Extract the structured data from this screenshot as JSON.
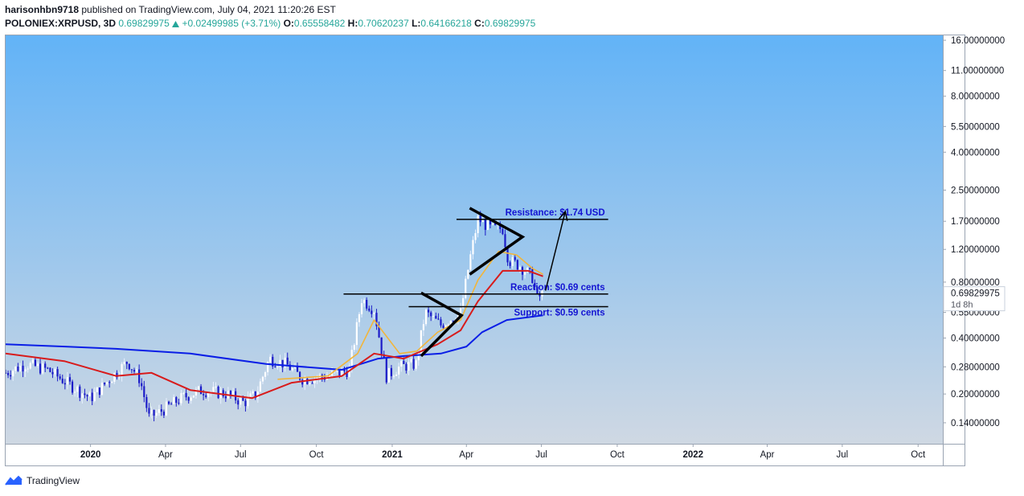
{
  "header": {
    "user": "harisonhbn9718",
    "published": "published on TradingView.com, July 04, 2021 11:20:26 EST",
    "symbol": "POLONIEX:XRPUSD, 3D",
    "last": "0.69829975",
    "change_icon": "triangle-up-icon",
    "change": "+0.02499985 (+3.71%)",
    "o_label": "O:",
    "o": "0.65558482",
    "h_label": "H:",
    "h": "0.70620237",
    "l_label": "L:",
    "l": "0.64166218",
    "c_label": "C:",
    "c": "0.69829975"
  },
  "footer": {
    "brand": "TradingView",
    "logo_icon": "tradingview-logo-icon"
  },
  "colors": {
    "bg_top": "#62b3f7",
    "bg_bottom": "#cfd8e3",
    "candle_up": "#ffffff",
    "candle_down": "#1c1cc8",
    "ma_long": "#0a1ee6",
    "ma_mid": "#d81b1b",
    "ma_short": "#f2b53a",
    "annotation_text": "#1414d2",
    "lines": "#000000",
    "axis_text": "#131722"
  },
  "chart_data": {
    "type": "candlestick",
    "title": "",
    "y_scale": "log",
    "ylim": [
      0.108,
      17.0
    ],
    "xlim": [
      "2019-09-20",
      "2022-10-31"
    ],
    "y_ticks": [
      "16.00000000",
      "11.00000000",
      "8.00000000",
      "5.50000000",
      "4.00000000",
      "2.50000000",
      "1.70000000",
      "1.20000000",
      "0.80000000",
      "0.55000000",
      "0.40000000",
      "0.28000000",
      "0.20000000",
      "0.14000000"
    ],
    "x_ticks": [
      {
        "label": "2020",
        "date": "2020-01-01",
        "bold": true
      },
      {
        "label": "Apr",
        "date": "2020-04-01",
        "bold": false
      },
      {
        "label": "Jul",
        "date": "2020-07-01",
        "bold": false
      },
      {
        "label": "Oct",
        "date": "2020-10-01",
        "bold": false
      },
      {
        "label": "2021",
        "date": "2021-01-01",
        "bold": true
      },
      {
        "label": "Apr",
        "date": "2021-04-01",
        "bold": false
      },
      {
        "label": "Jul",
        "date": "2021-07-01",
        "bold": false
      },
      {
        "label": "Oct",
        "date": "2021-10-01",
        "bold": false
      },
      {
        "label": "2022",
        "date": "2022-01-01",
        "bold": true
      },
      {
        "label": "Apr",
        "date": "2022-04-01",
        "bold": false
      },
      {
        "label": "Jul",
        "date": "2022-07-01",
        "bold": false
      },
      {
        "label": "Oct",
        "date": "2022-10-01",
        "bold": false
      }
    ],
    "last_price": {
      "label": "0.69829975",
      "countdown": "1d 8h",
      "value": 0.698
    },
    "candle_path": [
      [
        "2019-09-20",
        0.26
      ],
      [
        "2019-10-15",
        0.29
      ],
      [
        "2019-11-10",
        0.27
      ],
      [
        "2019-12-10",
        0.22
      ],
      [
        "2020-01-01",
        0.19
      ],
      [
        "2020-01-20",
        0.23
      ],
      [
        "2020-02-15",
        0.3
      ],
      [
        "2020-03-01",
        0.24
      ],
      [
        "2020-03-12",
        0.15
      ],
      [
        "2020-03-25",
        0.16
      ],
      [
        "2020-04-20",
        0.19
      ],
      [
        "2020-05-15",
        0.21
      ],
      [
        "2020-06-15",
        0.2
      ],
      [
        "2020-07-05",
        0.18
      ],
      [
        "2020-07-20",
        0.2
      ],
      [
        "2020-08-05",
        0.31
      ],
      [
        "2020-08-25",
        0.29
      ],
      [
        "2020-09-15",
        0.24
      ],
      [
        "2020-10-15",
        0.25
      ],
      [
        "2020-11-10",
        0.27
      ],
      [
        "2020-11-25",
        0.65
      ],
      [
        "2020-12-10",
        0.57
      ],
      [
        "2020-12-25",
        0.25
      ],
      [
        "2021-01-10",
        0.28
      ],
      [
        "2021-01-30",
        0.29
      ],
      [
        "2021-02-10",
        0.55
      ],
      [
        "2021-03-01",
        0.47
      ],
      [
        "2021-03-25",
        0.55
      ],
      [
        "2021-04-05",
        1.05
      ],
      [
        "2021-04-15",
        1.75
      ],
      [
        "2021-05-01",
        1.55
      ],
      [
        "2021-05-15",
        1.55
      ],
      [
        "2021-05-22",
        1.05
      ],
      [
        "2021-06-05",
        0.98
      ],
      [
        "2021-06-20",
        0.85
      ],
      [
        "2021-06-26",
        0.65
      ],
      [
        "2021-07-03",
        0.698
      ]
    ],
    "ma_series": [
      {
        "role": "ma-long",
        "points": [
          [
            "2019-09-20",
            0.37
          ],
          [
            "2019-12-01",
            0.36
          ],
          [
            "2020-02-01",
            0.35
          ],
          [
            "2020-05-01",
            0.33
          ],
          [
            "2020-08-01",
            0.29
          ],
          [
            "2020-11-01",
            0.27
          ],
          [
            "2020-12-15",
            0.31
          ],
          [
            "2021-01-15",
            0.32
          ],
          [
            "2021-03-01",
            0.33
          ],
          [
            "2021-04-01",
            0.36
          ],
          [
            "2021-04-20",
            0.43
          ],
          [
            "2021-05-20",
            0.5
          ],
          [
            "2021-07-03",
            0.53
          ]
        ]
      },
      {
        "role": "ma-mid",
        "points": [
          [
            "2019-09-20",
            0.33
          ],
          [
            "2019-12-01",
            0.3
          ],
          [
            "2020-02-01",
            0.25
          ],
          [
            "2020-03-15",
            0.26
          ],
          [
            "2020-05-01",
            0.21
          ],
          [
            "2020-07-15",
            0.19
          ],
          [
            "2020-09-01",
            0.23
          ],
          [
            "2020-11-01",
            0.25
          ],
          [
            "2020-12-10",
            0.33
          ],
          [
            "2021-01-15",
            0.31
          ],
          [
            "2021-02-25",
            0.37
          ],
          [
            "2021-03-25",
            0.44
          ],
          [
            "2021-04-15",
            0.63
          ],
          [
            "2021-05-15",
            0.92
          ],
          [
            "2021-06-15",
            0.92
          ],
          [
            "2021-07-03",
            0.86
          ]
        ]
      },
      {
        "role": "ma-short",
        "points": [
          [
            "2020-08-15",
            0.24
          ],
          [
            "2020-10-15",
            0.25
          ],
          [
            "2020-11-20",
            0.33
          ],
          [
            "2020-12-10",
            0.5
          ],
          [
            "2021-01-10",
            0.33
          ],
          [
            "2021-01-31",
            0.34
          ],
          [
            "2021-02-25",
            0.43
          ],
          [
            "2021-03-25",
            0.5
          ],
          [
            "2021-04-15",
            0.82
          ],
          [
            "2021-05-10",
            1.17
          ],
          [
            "2021-06-01",
            1.12
          ],
          [
            "2021-06-20",
            0.95
          ],
          [
            "2021-07-03",
            0.88
          ]
        ]
      }
    ],
    "annotations": {
      "horizontal_lines": [
        {
          "label": "Resistance: $1.74 USD",
          "value": 1.74,
          "from": "2021-03-20",
          "to": "2021-09-20"
        },
        {
          "label": "Reaction: $0.69 cents",
          "value": 0.69,
          "from": "2020-11-03",
          "to": "2021-09-20"
        },
        {
          "label": "Support: $0.59 cents",
          "value": 0.59,
          "from": "2021-01-21",
          "to": "2021-09-20"
        }
      ],
      "triangles": [
        [
          [
            "2021-02-05",
            0.7
          ],
          [
            "2021-03-26",
            0.53
          ],
          [
            "2021-02-05",
            0.32
          ]
        ],
        [
          [
            "2021-04-05",
            2.0
          ],
          [
            "2021-06-08",
            1.4
          ],
          [
            "2021-04-05",
            0.88
          ]
        ]
      ],
      "arrow": {
        "from": [
          "2021-07-06",
          0.72
        ],
        "to": [
          "2021-07-30",
          1.92
        ]
      }
    }
  }
}
